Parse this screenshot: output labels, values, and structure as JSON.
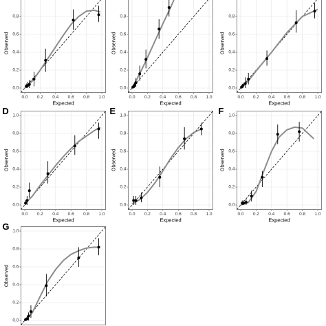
{
  "chart_data": [
    {
      "type": "scatter",
      "xlabel": "Expected",
      "ylabel": "Observed",
      "xlim": [
        -0.05,
        1.05
      ],
      "ylim": [
        -0.05,
        1.05
      ],
      "xticks": [
        {
          "value": 0,
          "label": "0.0"
        },
        {
          "value": 0.2,
          "label": "0.2"
        },
        {
          "value": 0.4,
          "label": "0.4"
        },
        {
          "value": 0.6,
          "label": "0.6"
        },
        {
          "value": 0.8,
          "label": "0.8"
        },
        {
          "value": 1,
          "label": "1.0"
        }
      ],
      "yticks": [
        {
          "value": 0,
          "label": "0.0"
        },
        0.2,
        0.4,
        0.6,
        0.8
      ],
      "grid": true,
      "diagonal": true,
      "point_color": "#000000",
      "curve_color": "#8c8c8c",
      "points": {
        "x": [
          0.02,
          0.04,
          0.06,
          0.12,
          0.27,
          0.63,
          0.96
        ],
        "y": [
          0.02,
          0.03,
          0.04,
          0.1,
          0.31,
          0.76,
          0.82
        ],
        "lower": [
          0.0,
          0.0,
          0.0,
          0.02,
          0.18,
          0.65,
          0.74
        ],
        "upper": [
          0.05,
          0.07,
          0.09,
          0.18,
          0.44,
          0.88,
          0.92
        ]
      },
      "curve": {
        "x": [
          0,
          0.1,
          0.2,
          0.3,
          0.4,
          0.5,
          0.6,
          0.7,
          0.8,
          0.9,
          0.98
        ],
        "y": [
          0,
          0.08,
          0.2,
          0.33,
          0.46,
          0.59,
          0.71,
          0.8,
          0.86,
          0.87,
          0.85
        ]
      }
    },
    {
      "type": "scatter",
      "xlabel": "Expected",
      "ylabel": "Observed",
      "xlim": [
        -0.05,
        1.05
      ],
      "ylim": [
        -0.05,
        1.05
      ],
      "xticks": [
        {
          "value": 0,
          "label": "0.0"
        },
        {
          "value": 0.2,
          "label": "0.2"
        },
        {
          "value": 0.4,
          "label": "0.4"
        },
        {
          "value": 0.6,
          "label": "0.6"
        },
        {
          "value": 0.8,
          "label": "0.8"
        },
        {
          "value": 1,
          "label": "1.0"
        }
      ],
      "yticks": [
        {
          "value": 0,
          "label": "0.0"
        },
        0.2,
        0.4,
        0.6,
        0.8
      ],
      "grid": true,
      "diagonal": true,
      "point_color": "#000000",
      "curve_color": "#8c8c8c",
      "points": {
        "x": [
          0.01,
          0.03,
          0.05,
          0.1,
          0.18,
          0.35,
          0.48
        ],
        "y": [
          0.01,
          0.03,
          0.06,
          0.16,
          0.32,
          0.66,
          0.9
        ],
        "lower": [
          0.0,
          0.0,
          0.01,
          0.08,
          0.22,
          0.55,
          0.8
        ],
        "upper": [
          0.03,
          0.06,
          0.11,
          0.25,
          0.43,
          0.77,
          1.0
        ]
      },
      "curve": {
        "x": [
          0,
          0.1,
          0.2,
          0.3,
          0.4,
          0.5,
          0.55
        ],
        "y": [
          0,
          0.16,
          0.34,
          0.53,
          0.72,
          0.9,
          1.0
        ]
      }
    },
    {
      "type": "scatter",
      "xlabel": "Expected",
      "ylabel": "Observed",
      "xlim": [
        -0.05,
        1.05
      ],
      "ylim": [
        -0.05,
        1.05
      ],
      "xticks": [
        {
          "value": 0,
          "label": "0.0"
        },
        {
          "value": 0.2,
          "label": "0.2"
        },
        {
          "value": 0.4,
          "label": "0.4"
        },
        {
          "value": 0.6,
          "label": "0.6"
        },
        {
          "value": 0.8,
          "label": "0.8"
        },
        {
          "value": 1,
          "label": "1.0"
        }
      ],
      "yticks": [
        {
          "value": 0,
          "label": "0.0"
        },
        0.2,
        0.4,
        0.6,
        0.8
      ],
      "grid": true,
      "diagonal": true,
      "point_color": "#000000",
      "curve_color": "#8c8c8c",
      "points": {
        "x": [
          0.01,
          0.03,
          0.06,
          0.1,
          0.34,
          0.72,
          0.96
        ],
        "y": [
          0.01,
          0.03,
          0.05,
          0.1,
          0.33,
          0.73,
          0.86
        ],
        "lower": [
          0.0,
          0.0,
          0.0,
          0.04,
          0.25,
          0.62,
          0.78
        ],
        "upper": [
          0.03,
          0.06,
          0.12,
          0.17,
          0.42,
          0.87,
          0.95
        ]
      },
      "curve": {
        "x": [
          0,
          0.1,
          0.2,
          0.4,
          0.6,
          0.8,
          1.0
        ],
        "y": [
          0,
          0.08,
          0.19,
          0.4,
          0.62,
          0.8,
          0.88
        ]
      }
    },
    {
      "type": "scatter",
      "label": "D",
      "xlabel": "Expected",
      "ylabel": "Observed",
      "xlim": [
        -0.05,
        1.05
      ],
      "ylim": [
        -0.05,
        1.05
      ],
      "xticks": [
        {
          "value": 0,
          "label": "0.0"
        },
        {
          "value": 0.2,
          "label": "0.2"
        },
        {
          "value": 0.4,
          "label": "0.4"
        },
        {
          "value": 0.6,
          "label": "0.6"
        },
        {
          "value": 0.8,
          "label": "0.8"
        },
        {
          "value": 1,
          "label": "1.0"
        }
      ],
      "yticks": [
        {
          "value": 0,
          "label": "0.0"
        },
        0.2,
        0.4,
        0.6,
        0.8,
        {
          "value": 1,
          "label": "1.0"
        }
      ],
      "grid": true,
      "diagonal": true,
      "point_color": "#000000",
      "curve_color": "#8c8c8c",
      "points": {
        "x": [
          0.01,
          0.03,
          0.06,
          0.3,
          0.65,
          0.96
        ],
        "y": [
          0.02,
          0.05,
          0.16,
          0.35,
          0.66,
          0.85
        ],
        "lower": [
          0.0,
          0.0,
          0.08,
          0.24,
          0.56,
          0.74
        ],
        "upper": [
          0.05,
          0.1,
          0.25,
          0.49,
          0.78,
          0.92
        ]
      },
      "curve": {
        "x": [
          0,
          0.1,
          0.2,
          0.3,
          0.4,
          0.5,
          0.6,
          0.7,
          0.8,
          0.9,
          0.98
        ],
        "y": [
          0.01,
          0.1,
          0.22,
          0.33,
          0.44,
          0.54,
          0.63,
          0.71,
          0.77,
          0.83,
          0.87
        ]
      }
    },
    {
      "type": "scatter",
      "label": "E",
      "xlabel": "Expected",
      "ylabel": "Observed",
      "xlim": [
        -0.05,
        1.05
      ],
      "ylim": [
        -0.05,
        1.05
      ],
      "xticks": [
        {
          "value": 0,
          "label": "0.0"
        },
        {
          "value": 0.2,
          "label": "0.2"
        },
        {
          "value": 0.4,
          "label": "0.4"
        },
        {
          "value": 0.6,
          "label": "0.6"
        },
        {
          "value": 0.8,
          "label": "0.8"
        },
        {
          "value": 1,
          "label": "1.0"
        }
      ],
      "yticks": [
        {
          "value": 0,
          "label": "0.0"
        },
        0.2,
        0.4,
        0.6,
        0.8,
        {
          "value": 1,
          "label": "1.0"
        }
      ],
      "grid": true,
      "diagonal": true,
      "point_color": "#000000",
      "curve_color": "#8c8c8c",
      "points": {
        "x": [
          0.02,
          0.05,
          0.12,
          0.36,
          0.68,
          0.9
        ],
        "y": [
          0.05,
          0.05,
          0.08,
          0.31,
          0.74,
          0.85
        ],
        "lower": [
          0.0,
          0.0,
          0.03,
          0.2,
          0.62,
          0.78
        ],
        "upper": [
          0.1,
          0.1,
          0.14,
          0.43,
          0.87,
          0.92
        ]
      },
      "curve": {
        "x": [
          0,
          0.1,
          0.2,
          0.3,
          0.4,
          0.5,
          0.6,
          0.7,
          0.8,
          0.9
        ],
        "y": [
          0.01,
          0.06,
          0.14,
          0.25,
          0.38,
          0.52,
          0.64,
          0.74,
          0.81,
          0.85
        ]
      }
    },
    {
      "type": "scatter",
      "label": "F",
      "xlabel": "Expected",
      "ylabel": "Observed",
      "xlim": [
        -0.05,
        1.05
      ],
      "ylim": [
        -0.05,
        1.05
      ],
      "xticks": [
        {
          "value": 0,
          "label": "0.0"
        },
        {
          "value": 0.2,
          "label": "0.2"
        },
        {
          "value": 0.4,
          "label": "0.4"
        },
        {
          "value": 0.6,
          "label": "0.6"
        },
        {
          "value": 0.8,
          "label": "0.8"
        },
        {
          "value": 1,
          "label": "1.0"
        }
      ],
      "yticks": [
        {
          "value": 0,
          "label": "0.0"
        },
        0.2,
        0.4,
        0.6,
        0.8,
        {
          "value": 1,
          "label": "1.0"
        }
      ],
      "grid": true,
      "diagonal": true,
      "point_color": "#000000",
      "curve_color": "#8c8c8c",
      "points": {
        "x": [
          0.02,
          0.04,
          0.07,
          0.14,
          0.28,
          0.48,
          0.76
        ],
        "y": [
          0.02,
          0.02,
          0.03,
          0.1,
          0.31,
          0.79,
          0.82
        ],
        "lower": [
          0.0,
          0.0,
          0.0,
          0.04,
          0.2,
          0.68,
          0.71
        ],
        "upper": [
          0.05,
          0.05,
          0.07,
          0.16,
          0.38,
          0.9,
          0.93
        ]
      },
      "curve": {
        "x": [
          0,
          0.1,
          0.2,
          0.3,
          0.4,
          0.5,
          0.6,
          0.7,
          0.8,
          0.9,
          0.95
        ],
        "y": [
          0,
          0.03,
          0.15,
          0.38,
          0.6,
          0.76,
          0.84,
          0.87,
          0.86,
          0.78,
          0.74
        ]
      }
    },
    {
      "type": "scatter",
      "label": "G",
      "ylabel": "Observed",
      "xlim": [
        -0.05,
        1.05
      ],
      "ylim": [
        -0.05,
        1.05
      ],
      "yticks": [
        {
          "value": 0,
          "label": "0.0"
        },
        0.2,
        0.4,
        0.6,
        0.8,
        {
          "value": 1,
          "label": "1.0"
        }
      ],
      "grid": true,
      "diagonal": true,
      "point_color": "#000000",
      "curve_color": "#8c8c8c",
      "points": {
        "x": [
          0.01,
          0.03,
          0.05,
          0.08,
          0.28,
          0.7,
          0.96
        ],
        "y": [
          0.01,
          0.02,
          0.05,
          0.1,
          0.39,
          0.7,
          0.82
        ],
        "lower": [
          0.0,
          0.0,
          0.0,
          0.03,
          0.27,
          0.6,
          0.73
        ],
        "upper": [
          0.03,
          0.05,
          0.09,
          0.17,
          0.52,
          0.82,
          0.92
        ]
      },
      "curve": {
        "x": [
          0,
          0.1,
          0.2,
          0.3,
          0.4,
          0.5,
          0.6,
          0.7,
          0.8,
          0.9,
          0.98
        ],
        "y": [
          0,
          0.09,
          0.27,
          0.44,
          0.57,
          0.67,
          0.74,
          0.78,
          0.81,
          0.82,
          0.82
        ]
      }
    }
  ]
}
